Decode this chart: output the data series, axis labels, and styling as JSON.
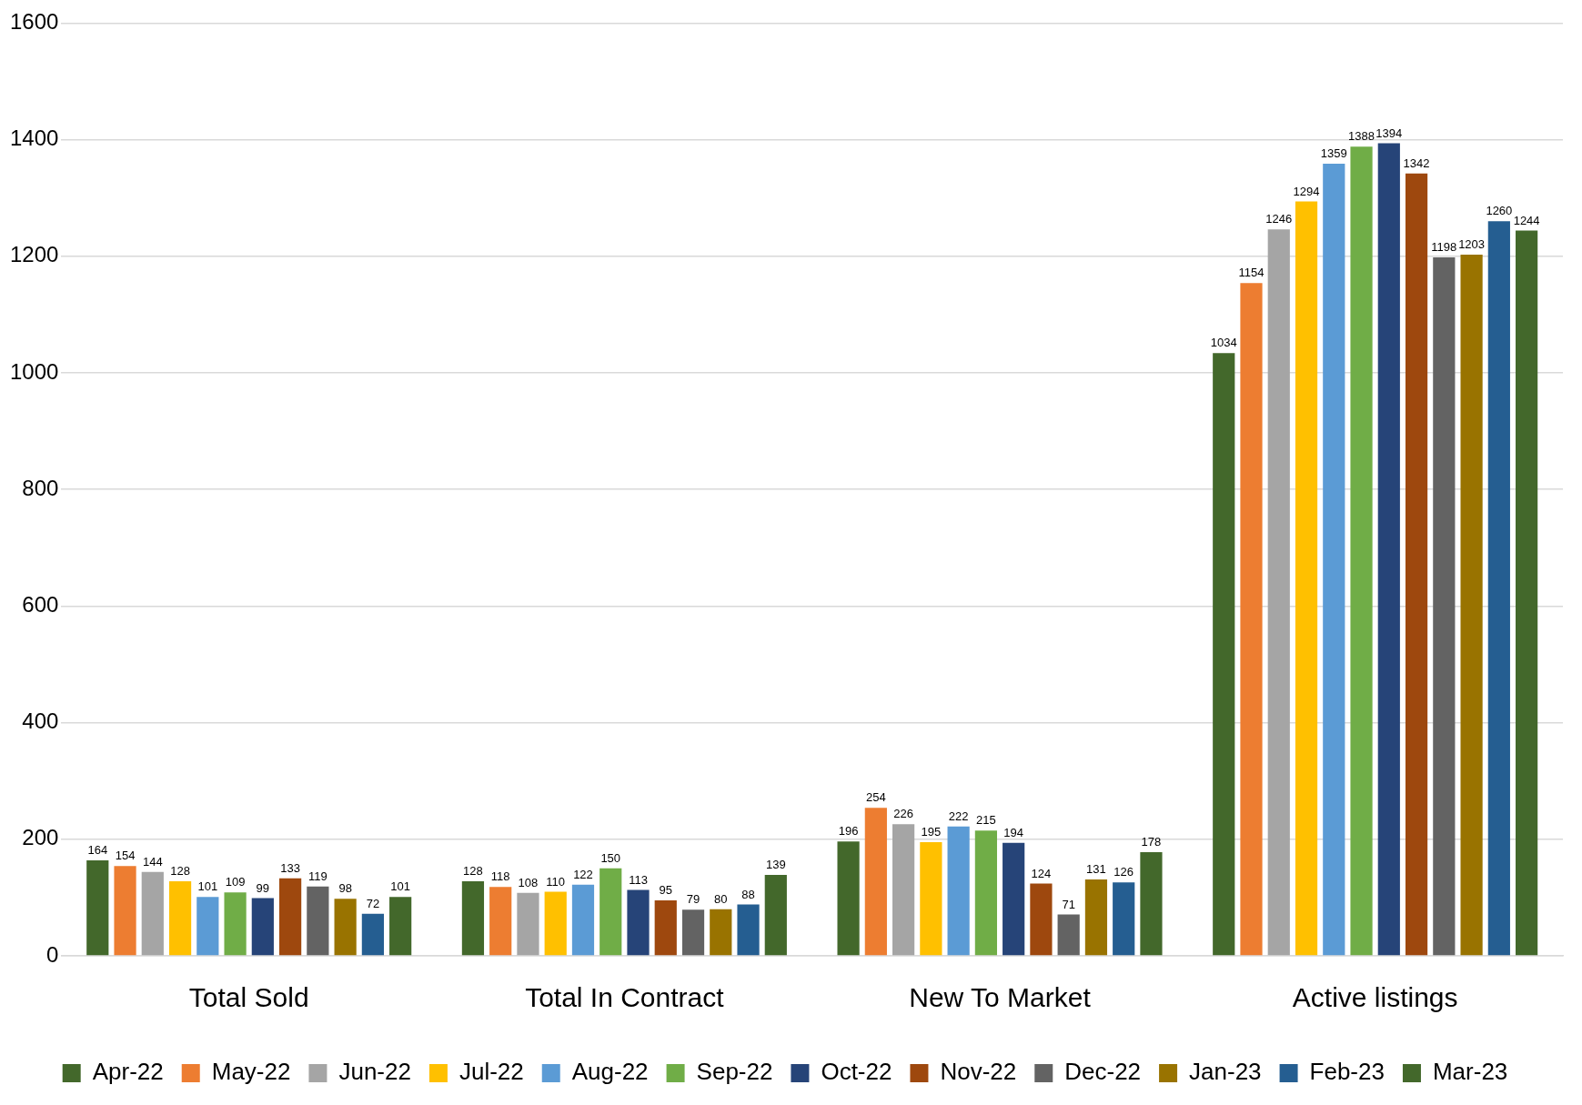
{
  "chart_data": {
    "type": "bar",
    "categories": [
      "Total Sold",
      "Total In Contract",
      "New To Market",
      "Active listings"
    ],
    "series": [
      {
        "name": "Apr-22",
        "color": "#43682b",
        "values": [
          164,
          128,
          196,
          1034
        ]
      },
      {
        "name": "May-22",
        "color": "#ed7d31",
        "values": [
          154,
          118,
          254,
          1154
        ]
      },
      {
        "name": "Jun-22",
        "color": "#a5a5a5",
        "values": [
          144,
          108,
          226,
          1246
        ]
      },
      {
        "name": "Jul-22",
        "color": "#ffc000",
        "values": [
          128,
          110,
          195,
          1294
        ]
      },
      {
        "name": "Aug-22",
        "color": "#5b9bd5",
        "values": [
          101,
          122,
          222,
          1359
        ]
      },
      {
        "name": "Sep-22",
        "color": "#70ad47",
        "values": [
          109,
          150,
          215,
          1388
        ]
      },
      {
        "name": "Oct-22",
        "color": "#264478",
        "values": [
          99,
          113,
          194,
          1394
        ]
      },
      {
        "name": "Nov-22",
        "color": "#9e480e",
        "values": [
          133,
          95,
          124,
          1342
        ]
      },
      {
        "name": "Dec-22",
        "color": "#636363",
        "values": [
          119,
          79,
          71,
          1198
        ]
      },
      {
        "name": "Jan-23",
        "color": "#997300",
        "values": [
          98,
          80,
          131,
          1203
        ]
      },
      {
        "name": "Feb-23",
        "color": "#255e91",
        "values": [
          72,
          88,
          126,
          1260
        ]
      },
      {
        "name": "Mar-23",
        "color": "#43682b",
        "values": [
          101,
          139,
          178,
          1244
        ]
      }
    ],
    "ylim": [
      0,
      1600
    ],
    "yticks": [
      0,
      200,
      400,
      600,
      800,
      1000,
      1200,
      1400,
      1600
    ],
    "grid": "y",
    "legend": "bottom",
    "data_labels": true
  }
}
